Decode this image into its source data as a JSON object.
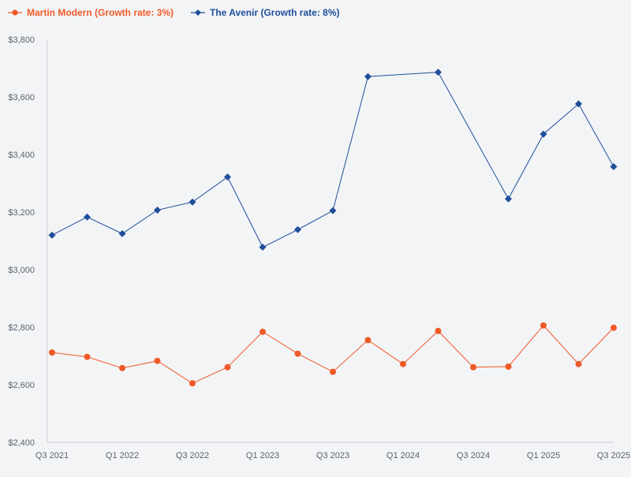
{
  "chart_data": {
    "type": "line",
    "title": "",
    "xlabel": "",
    "ylabel": "",
    "ylim": [
      2400,
      3800
    ],
    "yticks": [
      "$2,400",
      "$2,600",
      "$2,800",
      "$3,000",
      "$3,200",
      "$3,400",
      "$3,600",
      "$3,800"
    ],
    "ytick_values": [
      2400,
      2600,
      2800,
      3000,
      3200,
      3400,
      3600,
      3800
    ],
    "categories": [
      "Q3 2021",
      "Q4 2021",
      "Q1 2022",
      "Q2 2022",
      "Q3 2022",
      "Q4 2022",
      "Q1 2023",
      "Q2 2023",
      "Q3 2023",
      "Q4 2023",
      "Q1 2024",
      "Q2 2024",
      "Q3 2024",
      "Q4 2024",
      "Q1 2025",
      "Q2 2025",
      "Q3 2025"
    ],
    "xtick_labels": [
      "Q3 2021",
      "Q1 2022",
      "Q3 2022",
      "Q1 2023",
      "Q3 2023",
      "Q1 2024",
      "Q3 2024",
      "Q1 2025",
      "Q3 2025"
    ],
    "legend_position": "top-left",
    "series": [
      {
        "name": "Martin Modern (Growth rate: 3%)",
        "color": "#f05a28",
        "marker": "circle",
        "values": [
          2712,
          2697,
          2658,
          2683,
          2605,
          2661,
          2784,
          2708,
          2645,
          2755,
          2672,
          2787,
          2661,
          2663,
          2806,
          2672,
          2798
        ]
      },
      {
        "name": "The Avenir (Growth rate: 8%)",
        "color": "#1f4e9b",
        "marker": "diamond",
        "values": [
          3120,
          3183,
          3125,
          3207,
          3235,
          3322,
          3078,
          3139,
          3205,
          3671,
          null,
          3686,
          null,
          3246,
          3471,
          3576,
          3358
        ]
      }
    ]
  }
}
